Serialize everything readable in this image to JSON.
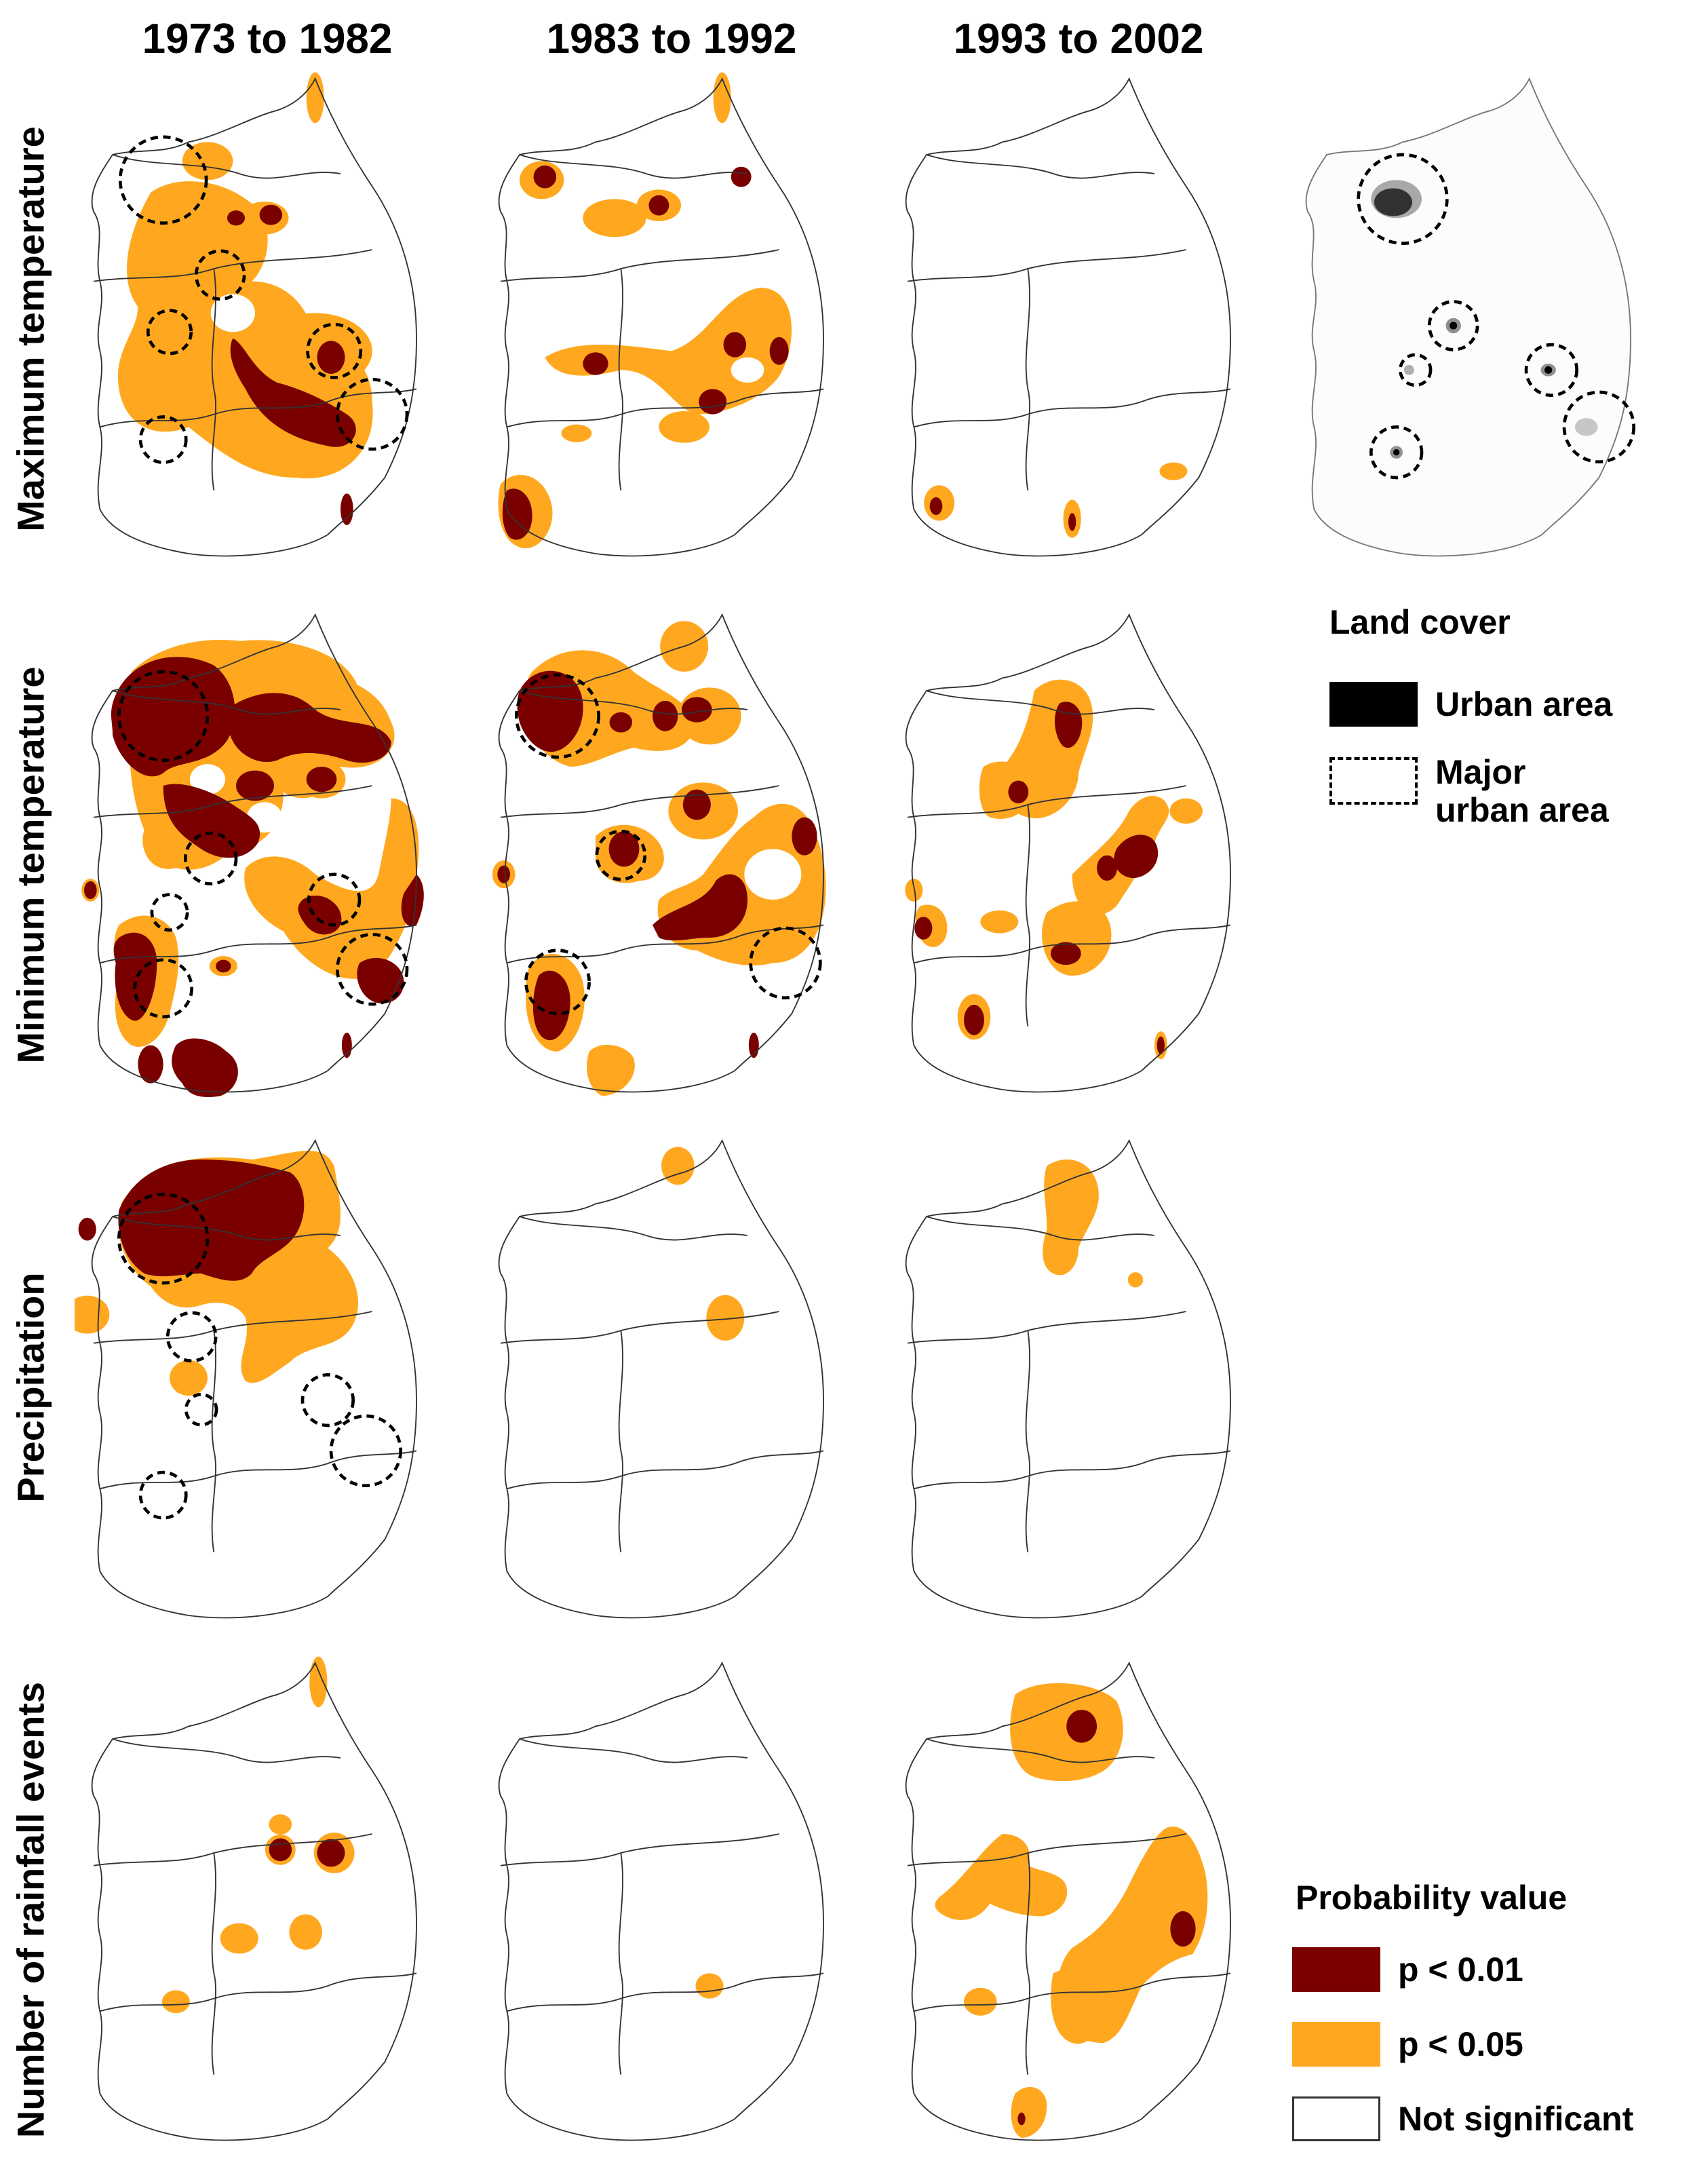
{
  "columns": [
    "1973 to 1982",
    "1983 to 1992",
    "1993 to 2002"
  ],
  "rows": [
    "Maximum temperature",
    "Minimum temperature",
    "Precipitation",
    "Number of rainfall events"
  ],
  "colors": {
    "p001": "#7a0000",
    "p005": "#ffa81f",
    "urban": "#000000",
    "outline": "#333333"
  },
  "land_cover_legend": {
    "title": "Land cover",
    "urban_area": "Urban area",
    "major_urban_line1": "Major",
    "major_urban_line2": "urban area"
  },
  "probability_legend": {
    "title": "Probability value",
    "p001": "p < 0.01",
    "p005": "p < 0.05",
    "not_significant": "Not significant"
  }
}
